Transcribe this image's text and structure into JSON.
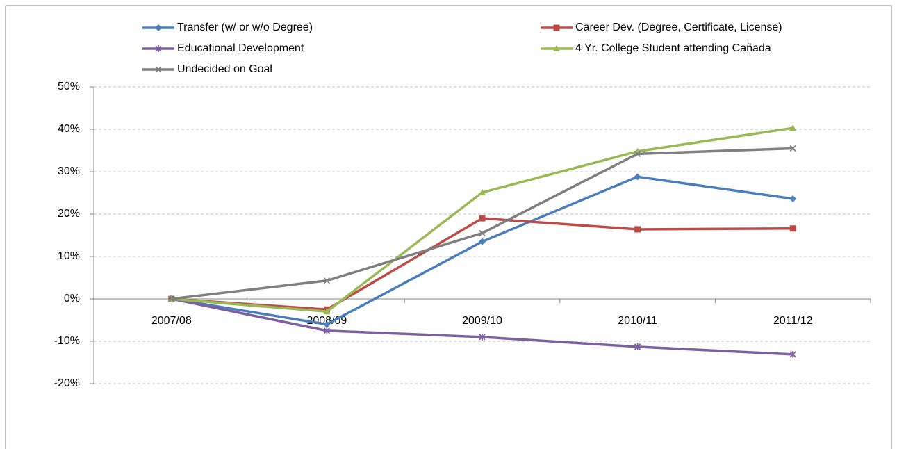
{
  "chart_data": {
    "type": "line",
    "categories": [
      "2007/08",
      "2008/09",
      "2009/10",
      "2010/11",
      "2011/12"
    ],
    "series": [
      {
        "name": "Transfer (w/ or w/o Degree)",
        "color": "#4a7ebb",
        "marker": "diamond",
        "values": [
          0,
          -6,
          13.5,
          28.8,
          23.6
        ]
      },
      {
        "name": "Career Dev. (Degree, Certificate, License)",
        "color": "#be4b48",
        "marker": "square",
        "values": [
          0,
          -2.5,
          19,
          16.4,
          16.6
        ]
      },
      {
        "name": "Educational Development",
        "color": "#7d60a0",
        "marker": "star",
        "values": [
          0,
          -7.5,
          -9,
          -11.3,
          -13.1
        ]
      },
      {
        "name": "4 Yr. College Student attending Cañada",
        "color": "#98b954",
        "marker": "triangle",
        "values": [
          0,
          -3,
          25.1,
          34.8,
          40.3
        ]
      },
      {
        "name": "Undecided on Goal",
        "color": "#7f7f7f",
        "marker": "x",
        "values": [
          0,
          4.3,
          15.5,
          34.2,
          35.5
        ]
      }
    ],
    "ylim": [
      -20,
      50
    ],
    "yticks": [
      {
        "value": -20,
        "label": "-20%"
      },
      {
        "value": -10,
        "label": "-10%"
      },
      {
        "value": 0,
        "label": "0%"
      },
      {
        "value": 10,
        "label": "10%"
      },
      {
        "value": 20,
        "label": "20%"
      },
      {
        "value": 30,
        "label": "30%"
      },
      {
        "value": 40,
        "label": "40%"
      },
      {
        "value": 50,
        "label": "50%"
      }
    ],
    "grid": true
  }
}
